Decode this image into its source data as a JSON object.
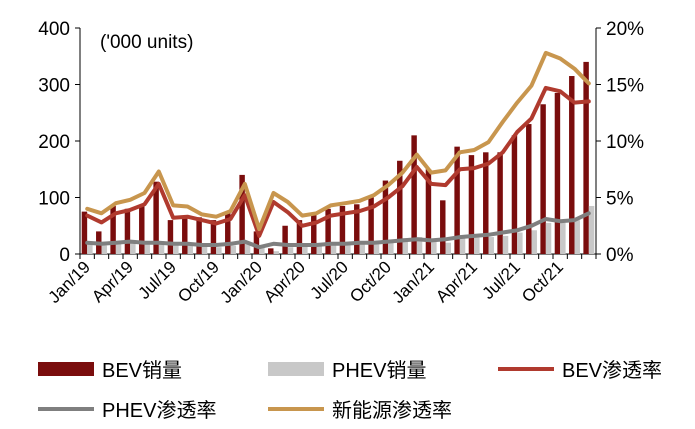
{
  "chart_data": {
    "type": "bar+line",
    "annotation": "('000 units)",
    "x": [
      "Jan/19",
      "Feb/19",
      "Mar/19",
      "Apr/19",
      "May/19",
      "Jun/19",
      "Jul/19",
      "Aug/19",
      "Sep/19",
      "Oct/19",
      "Nov/19",
      "Dec/19",
      "Jan/20",
      "Feb/20",
      "Mar/20",
      "Apr/20",
      "May/20",
      "Jun/20",
      "Jul/20",
      "Aug/20",
      "Sep/20",
      "Oct/20",
      "Nov/20",
      "Dec/20",
      "Jan/21",
      "Feb/21",
      "Mar/21",
      "Apr/21",
      "May/21",
      "Jun/21",
      "Jul/21",
      "Aug/21",
      "Sep/21",
      "Oct/21",
      "Nov/21",
      "Dec/21"
    ],
    "x_tick_labels": [
      "Jan/19",
      "Apr/19",
      "Jul/19",
      "Oct/19",
      "Jan/20",
      "Apr/20",
      "Jul/20",
      "Oct/20",
      "Jan/21",
      "Apr/21",
      "Jul/21",
      "Oct/21"
    ],
    "y_left": {
      "ticks": [
        "0",
        "100",
        "200",
        "300",
        "400"
      ],
      "range": [
        0,
        400
      ]
    },
    "y_right": {
      "ticks": [
        "0%",
        "5%",
        "10%",
        "15%",
        "20%"
      ],
      "range": [
        0,
        20
      ]
    },
    "series": [
      {
        "name": "BEV销量",
        "kind": "bar",
        "axis": "left",
        "color": "#7a0d0d",
        "values": [
          75,
          40,
          85,
          80,
          85,
          128,
          60,
          65,
          65,
          60,
          75,
          140,
          40,
          10,
          50,
          60,
          70,
          80,
          85,
          88,
          100,
          130,
          165,
          210,
          150,
          95,
          190,
          175,
          180,
          180,
          210,
          230,
          265,
          285,
          315,
          340
        ]
      },
      {
        "name": "PHEV销量",
        "kind": "bar",
        "axis": "left",
        "color": "#c8c8c8",
        "values": [
          20,
          15,
          20,
          20,
          20,
          23,
          15,
          15,
          15,
          12,
          15,
          20,
          15,
          5,
          12,
          15,
          15,
          18,
          18,
          20,
          22,
          25,
          28,
          30,
          25,
          20,
          30,
          30,
          30,
          32,
          38,
          42,
          55,
          55,
          60,
          85
        ]
      },
      {
        "name": "BEV渗透率",
        "kind": "line",
        "axis": "right",
        "color": "#b03a2e",
        "values": [
          3.4,
          2.8,
          3.6,
          3.9,
          4.4,
          6.2,
          3.2,
          3.3,
          3.0,
          2.7,
          3.1,
          5.2,
          1.6,
          4.6,
          3.7,
          2.5,
          2.8,
          3.4,
          3.6,
          3.8,
          4.2,
          5.0,
          6.0,
          7.7,
          6.2,
          6.1,
          7.5,
          7.6,
          8.0,
          9.0,
          10.8,
          12.0,
          14.7,
          14.4,
          13.4,
          13.5
        ]
      },
      {
        "name": "PHEV渗透率",
        "kind": "line",
        "axis": "right",
        "color": "#7f7f7f",
        "values": [
          1.0,
          0.9,
          1.0,
          1.1,
          1.0,
          1.0,
          0.9,
          0.9,
          0.8,
          0.8,
          0.9,
          1.1,
          0.6,
          0.9,
          0.8,
          0.8,
          0.8,
          0.9,
          0.9,
          1.0,
          1.0,
          1.1,
          1.2,
          1.3,
          1.2,
          1.3,
          1.5,
          1.6,
          1.7,
          1.9,
          2.1,
          2.5,
          3.1,
          2.9,
          3.0,
          3.6
        ]
      },
      {
        "name": "新能源渗透率",
        "kind": "line",
        "axis": "right",
        "color": "#c8964e",
        "values": [
          4.0,
          3.6,
          4.5,
          4.8,
          5.4,
          7.3,
          4.3,
          4.2,
          3.5,
          3.3,
          3.8,
          6.2,
          2.2,
          5.4,
          4.6,
          3.4,
          3.6,
          4.3,
          4.5,
          4.7,
          5.2,
          6.1,
          7.2,
          8.8,
          7.2,
          7.4,
          9.0,
          9.2,
          9.9,
          11.7,
          13.4,
          14.9,
          17.8,
          17.3,
          16.4,
          15.1
        ]
      }
    ]
  }
}
